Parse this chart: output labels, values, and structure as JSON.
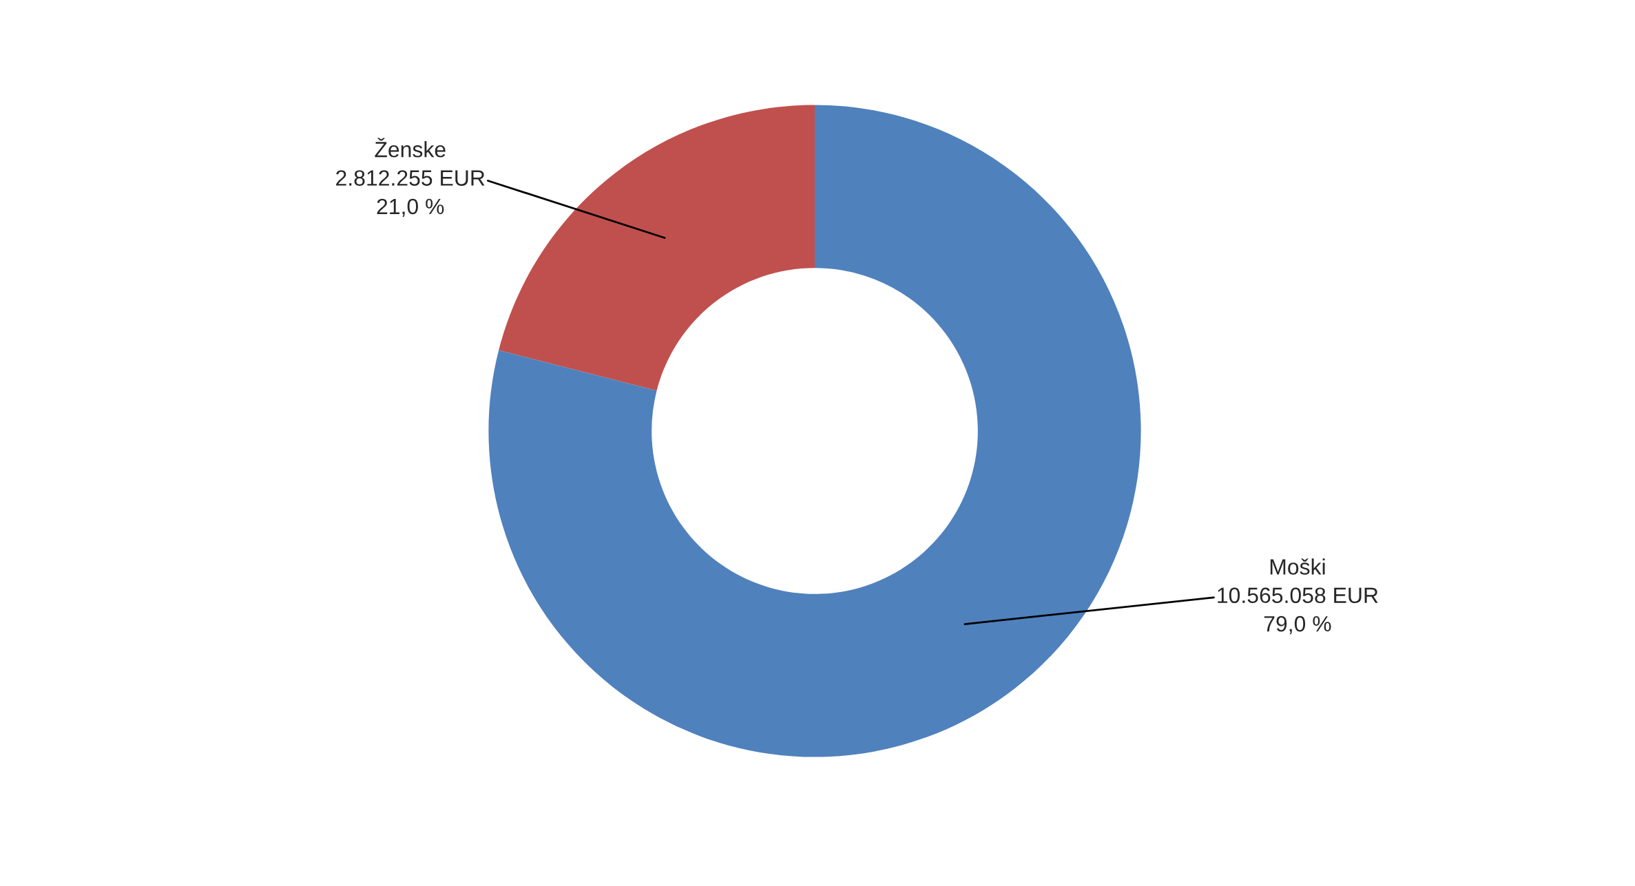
{
  "chart_data": {
    "type": "donut",
    "categories": [
      "Ženske",
      "Moški"
    ],
    "values": [
      2812255,
      10565058
    ],
    "colors": [
      "#c0504d",
      "#4f81bd"
    ],
    "value_labels": [
      "2.812.255 EUR\n21,0 %",
      "10.565.058 EUR\n79,0 %"
    ],
    "legend": false
  }
}
